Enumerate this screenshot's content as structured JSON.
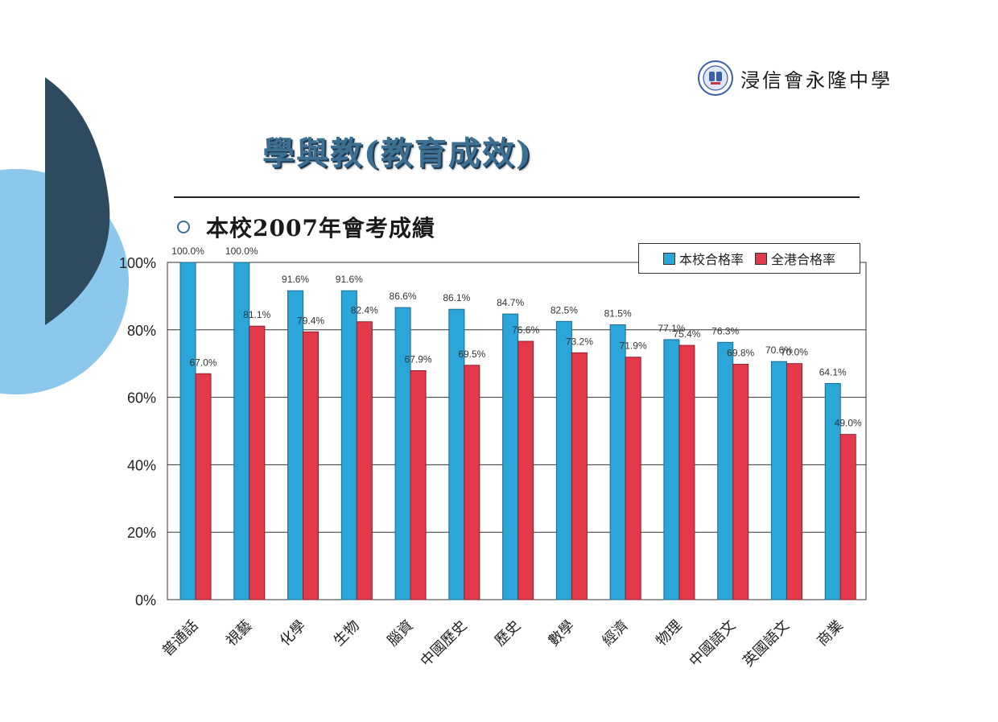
{
  "logo": {
    "school_name": "浸信會永隆中學"
  },
  "page_title": "學與教(教育成效)",
  "section": {
    "subtitle": "本校2007年會考成績"
  },
  "colors": {
    "school": "#2aa6d9",
    "hk": "#e23a4a",
    "title": "#3d6f93"
  },
  "chart_data": {
    "type": "bar",
    "title": "本校2007年會考成績",
    "categories": [
      "普通話",
      "視藝",
      "化學",
      "生物",
      "腦資",
      "中國歷史",
      "歷史",
      "數學",
      "經濟",
      "物理",
      "中國語文",
      "英國語文",
      "商業"
    ],
    "series": [
      {
        "name": "本校合格率",
        "values": [
          100.0,
          100.0,
          91.6,
          91.6,
          86.6,
          86.1,
          84.7,
          82.5,
          81.5,
          77.1,
          76.3,
          70.6,
          64.1
        ]
      },
      {
        "name": "全港合格率",
        "values": [
          67.0,
          81.1,
          79.4,
          82.4,
          67.9,
          69.5,
          76.6,
          73.2,
          71.9,
          75.4,
          69.8,
          70.0,
          49.0
        ]
      }
    ],
    "data_labels": [
      [
        "100.0%",
        "100.0%",
        "91.6%",
        "91.6%",
        "86.6%",
        "86.1%",
        "84.7%",
        "82.5%",
        "81.5%",
        "77.1%",
        "76.3%",
        "70.6%",
        "64.1%"
      ],
      [
        "67.0%",
        "81.1%",
        "79.4%",
        "82.4%",
        "67.9%",
        "69.5%",
        "76.6%",
        "73.2%",
        "71.9%",
        "75.4%",
        "69.8%",
        "70.0%",
        "49.0%"
      ]
    ],
    "yticks": [
      "0%",
      "20%",
      "40%",
      "60%",
      "80%",
      "100%"
    ],
    "ylim": [
      0,
      100
    ],
    "grid": true,
    "legend_position": "top-right"
  }
}
